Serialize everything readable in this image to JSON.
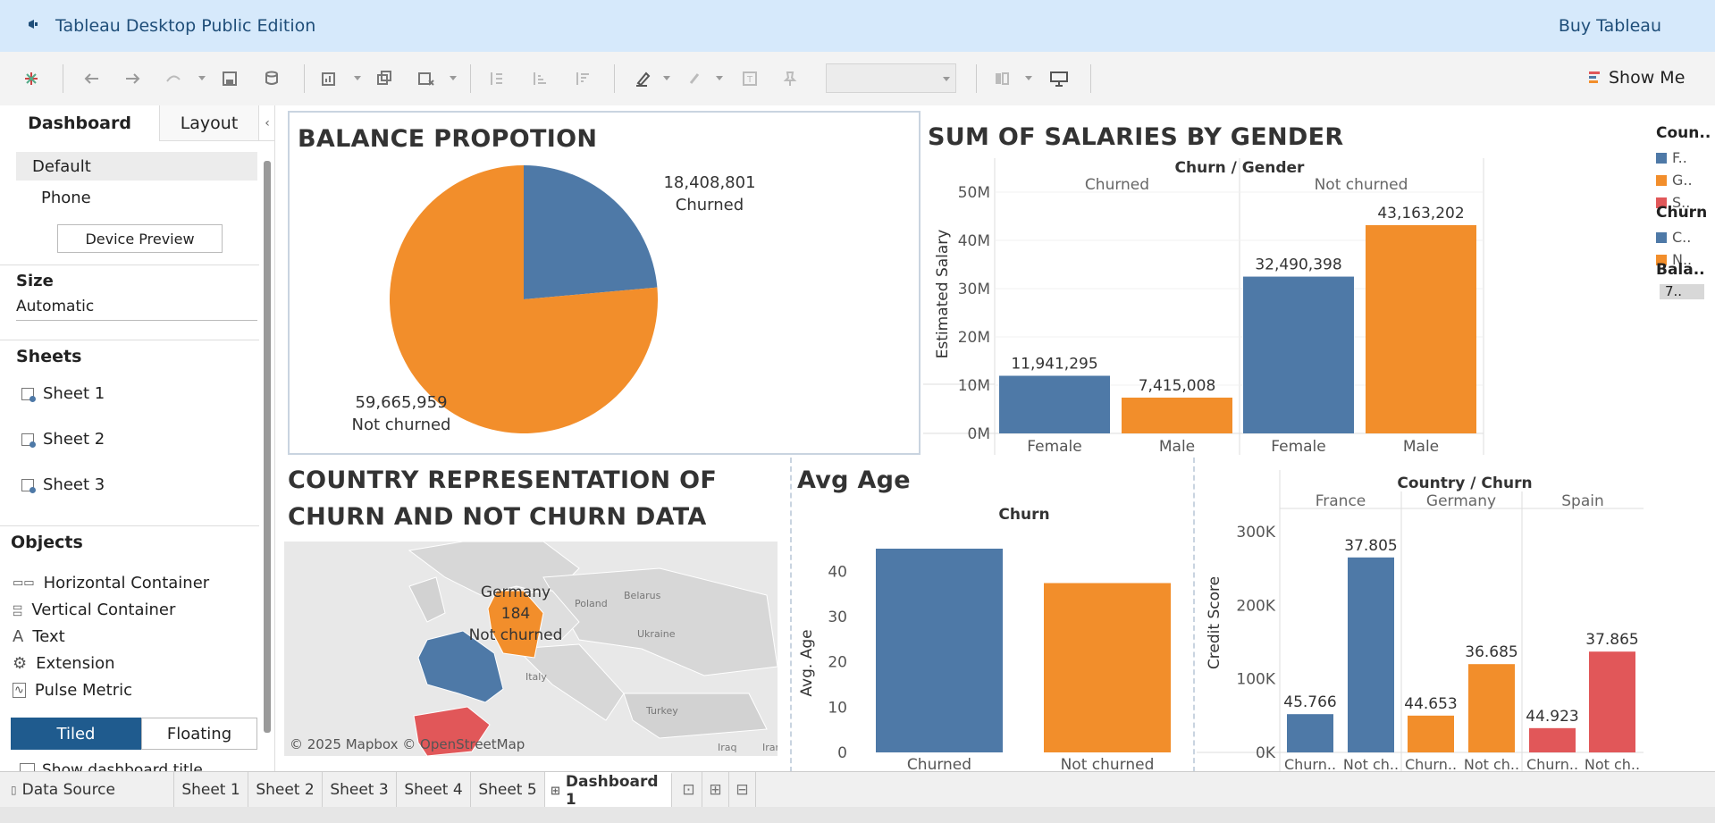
{
  "app": {
    "title": "Tableau Desktop Public Edition",
    "buy": "Buy Tableau"
  },
  "toolbar": {
    "show_me": "Show Me"
  },
  "left_panel": {
    "tabs": [
      "Dashboard",
      "Layout"
    ],
    "devices": [
      "Default",
      "Phone"
    ],
    "device_preview": "Device Preview",
    "size_header": "Size",
    "size_value": "Automatic",
    "sheets_header": "Sheets",
    "sheets": [
      "Sheet 1",
      "Sheet 2",
      "Sheet 3"
    ],
    "objects_header": "Objects",
    "objects": [
      "Horizontal Container",
      "Vertical Container",
      "Text",
      "Extension",
      "Pulse Metric"
    ],
    "tiled": "Tiled",
    "floating": "Floating",
    "show_title": "Show dashboard title"
  },
  "legend": {
    "country_title": "Coun..",
    "country_items": [
      {
        "label": "F..",
        "color": "#4e79a7"
      },
      {
        "label": "G..",
        "color": "#f28e2b"
      },
      {
        "label": "S..",
        "color": "#e15759"
      }
    ],
    "churn_title": "Churn",
    "churn_items": [
      {
        "label": "C..",
        "color": "#4e79a7"
      },
      {
        "label": "N..",
        "color": "#f28e2b"
      }
    ],
    "balance_title": "Bala..",
    "balance_value": "7.."
  },
  "balance": {
    "title": "BALANCE PROPOTION",
    "chart_data": {
      "type": "pie",
      "slices": [
        {
          "name": "Churned",
          "value": 18408801,
          "label": "18,408,801",
          "color": "#4e79a7"
        },
        {
          "name": "Not churned",
          "value": 59665959,
          "label": "59,665,959",
          "color": "#f28e2b"
        }
      ]
    }
  },
  "salaries": {
    "title": "SUM OF SALARIES BY GENDER",
    "header": "Churn / Gender",
    "groups": [
      "Churned",
      "Not churned"
    ],
    "ylabel": "Estimated Salary",
    "yticks": [
      "0M",
      "10M",
      "20M",
      "30M",
      "40M",
      "50M"
    ],
    "chart_data": {
      "type": "bar",
      "categories": [
        "Female",
        "Male",
        "Female",
        "Male"
      ],
      "values": [
        11941295,
        7415008,
        32490398,
        43163202
      ],
      "labels": [
        "11,941,295",
        "7,415,008",
        "32,490,398",
        "43,163,202"
      ],
      "colors": [
        "#4e79a7",
        "#f28e2b",
        "#4e79a7",
        "#f28e2b"
      ],
      "ylim": [
        0,
        50000000
      ]
    }
  },
  "country": {
    "title_line1": "COUNTRY REPRESENTATION OF",
    "title_line2": "CHURN AND NOT CHURN DATA",
    "map_labels": {
      "germany": "Germany",
      "count": "184",
      "status": "Not churned",
      "poland": "Poland",
      "belarus": "Belarus",
      "ukraine": "Ukraine",
      "italy": "Italy",
      "turkey": "Turkey",
      "iraq": "Iraq",
      "iran": "Iran"
    },
    "attribution": "© 2025 Mapbox © OpenStreetMap"
  },
  "avg_age": {
    "title": "Avg Age",
    "header": "Churn",
    "ylabel": "Avg. Age",
    "yticks": [
      "0",
      "10",
      "20",
      "30",
      "40"
    ],
    "chart_data": {
      "type": "bar",
      "categories": [
        "Churned",
        "Not churned"
      ],
      "values": [
        45,
        37.4
      ],
      "colors": [
        "#4e79a7",
        "#f28e2b"
      ],
      "ylim": [
        0,
        45
      ]
    }
  },
  "credit": {
    "header": "Country / Churn",
    "countries": [
      "France",
      "Germany",
      "Spain"
    ],
    "ylabel": "Credit Score",
    "yticks": [
      "0K",
      "100K",
      "200K",
      "300K"
    ],
    "chart_data": {
      "type": "bar",
      "categories": [
        "Churn..",
        "Not ch..",
        "Churn..",
        "Not ch..",
        "Churn..",
        "Not ch.."
      ],
      "values": [
        52000,
        265000,
        50000,
        120000,
        33000,
        137000
      ],
      "labels": [
        "45.766",
        "37.805",
        "44.653",
        "36.685",
        "44.923",
        "37.865"
      ],
      "colors": [
        "#4e79a7",
        "#4e79a7",
        "#f28e2b",
        "#f28e2b",
        "#e15759",
        "#e15759"
      ],
      "ylim": [
        0,
        300000
      ]
    }
  },
  "bottom_tabs": [
    "Data Source",
    "Sheet 1",
    "Sheet 2",
    "Sheet 3",
    "Sheet 4",
    "Sheet 5",
    "Dashboard 1"
  ]
}
